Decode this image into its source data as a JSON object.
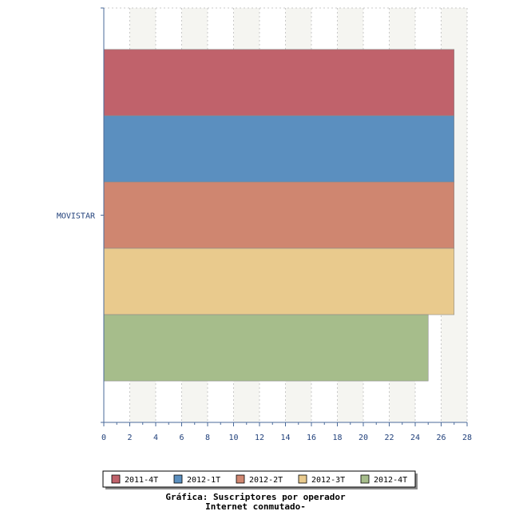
{
  "chart_data": {
    "type": "bar",
    "orientation": "horizontal",
    "categories": [
      "MOVISTAR"
    ],
    "series": [
      {
        "name": "2011-4T",
        "values": [
          27
        ],
        "color": "#c0626b"
      },
      {
        "name": "2012-1T",
        "values": [
          27
        ],
        "color": "#5b8fbf"
      },
      {
        "name": "2012-2T",
        "values": [
          27
        ],
        "color": "#cf8670"
      },
      {
        "name": "2012-3T",
        "values": [
          27
        ],
        "color": "#e9ca8d"
      },
      {
        "name": "2012-4T",
        "values": [
          25
        ],
        "color": "#a6bd8b"
      }
    ],
    "xlim": [
      0,
      28
    ],
    "xticks": [
      0,
      2,
      4,
      6,
      8,
      10,
      12,
      14,
      16,
      18,
      20,
      22,
      24,
      26,
      28
    ],
    "grid": true,
    "legend_position": "bottom",
    "title": "",
    "xlabel": "",
    "ylabel": ""
  },
  "caption": {
    "line1": "Gráfica: Suscriptores por operador",
    "line2": "Internet conmutado-"
  },
  "colors": {
    "axis": "#4a6a9a",
    "grid": "#c8c8c8",
    "band": "#f5f5f1",
    "tick_text": "#1f3f7a"
  }
}
